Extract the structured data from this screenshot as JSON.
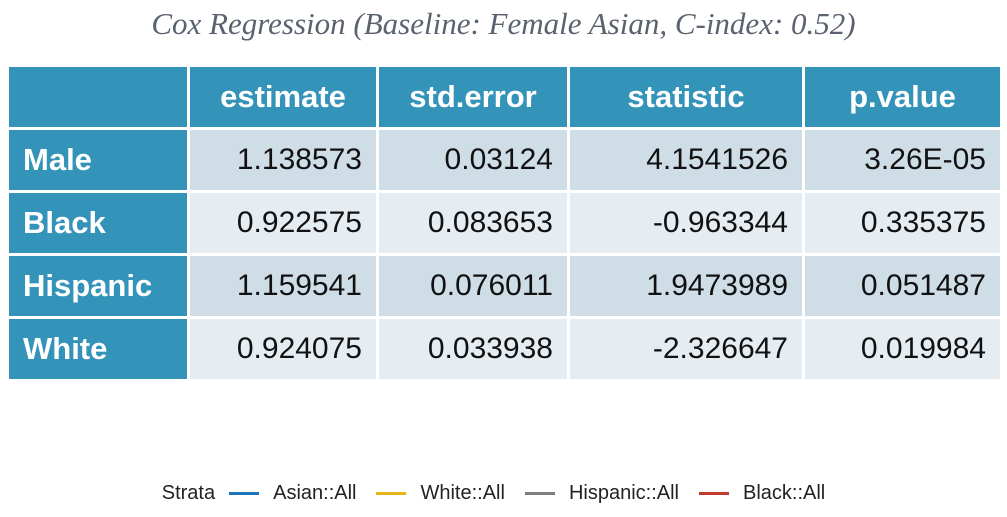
{
  "chart_data": {
    "type": "table",
    "title": "Cox Regression (Baseline: Female Asian, C-index: 0.52)",
    "columns": [
      "estimate",
      "std.error",
      "statistic",
      "p.value"
    ],
    "rows": [
      {
        "label": "Male",
        "values": [
          "1.138573",
          "0.03124",
          "4.1541526",
          "3.26E-05"
        ]
      },
      {
        "label": "Black",
        "values": [
          "0.922575",
          "0.083653",
          "-0.963344",
          "0.335375"
        ]
      },
      {
        "label": "Hispanic",
        "values": [
          "1.159541",
          "0.076011",
          "1.9473989",
          "0.051487"
        ]
      },
      {
        "label": "White",
        "values": [
          "0.924075",
          "0.033938",
          "-2.326647",
          "0.019984"
        ]
      }
    ],
    "header_color": "#3393b9",
    "row_colors": [
      "#cfdde6",
      "#e6edf2"
    ],
    "legend": {
      "title": "Strata",
      "placement": "bottom",
      "entries": [
        {
          "name": "Asian::All",
          "color": "#1f74b9"
        },
        {
          "name": "White::All",
          "color": "#e8b418"
        },
        {
          "name": "Hispanic::All",
          "color": "#808080"
        },
        {
          "name": "Black::All",
          "color": "#c0392b"
        }
      ]
    }
  }
}
